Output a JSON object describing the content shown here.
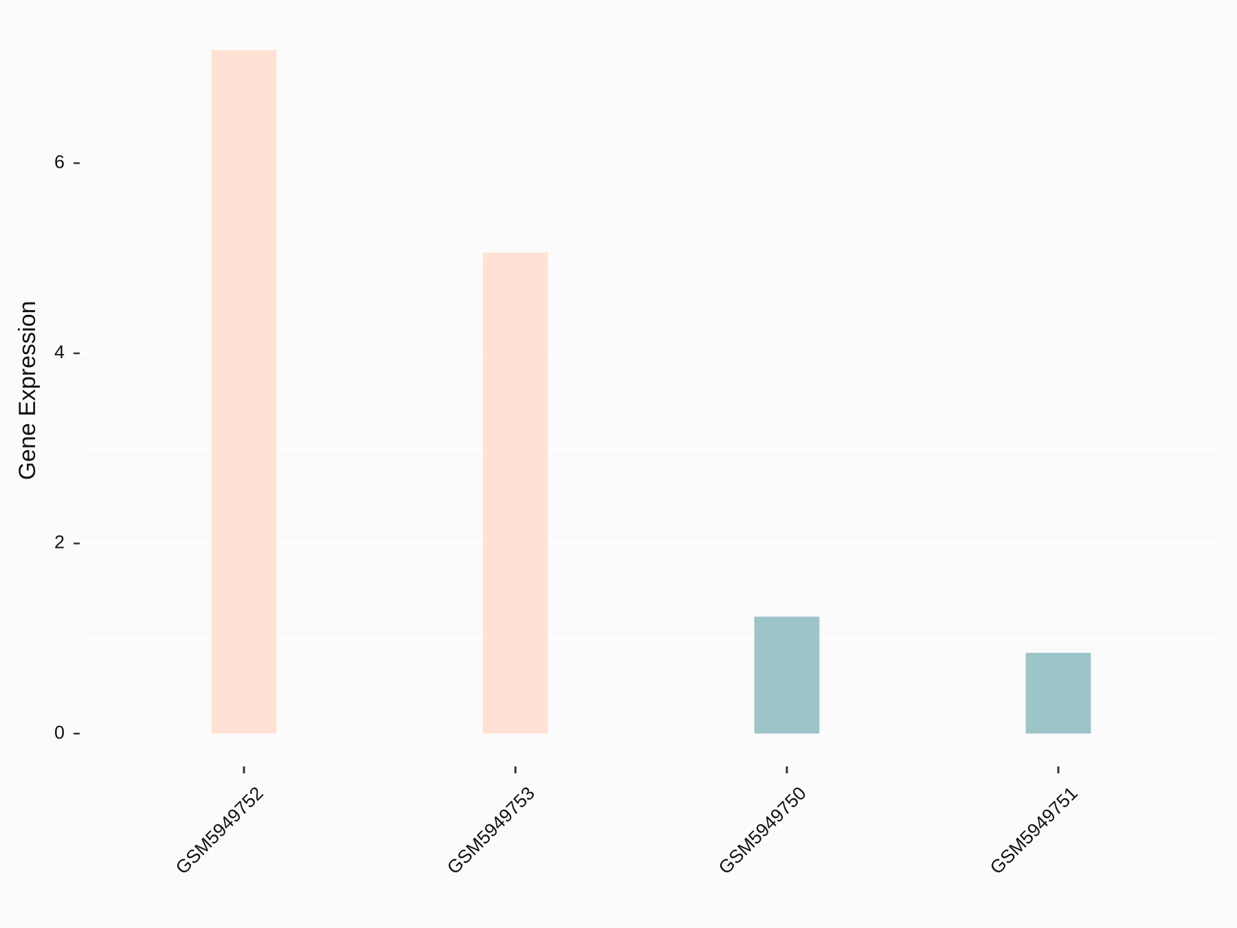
{
  "chart_data": {
    "type": "bar",
    "y_label": "Gene Expression",
    "categories": [
      "GSM5949752",
      "GSM5949753",
      "GSM5949750",
      "GSM5949751"
    ],
    "values": [
      7.19,
      5.06,
      1.23,
      0.85
    ],
    "colors": [
      "#FFE1D6",
      "#FFE1D6",
      "#9DC4C8",
      "#9DC4C8"
    ],
    "ylim": [
      -0.36,
      7.55
    ],
    "yticks": [
      0,
      2,
      4,
      6
    ],
    "minor_grid": [
      1,
      3,
      5,
      7
    ],
    "grid": true
  }
}
